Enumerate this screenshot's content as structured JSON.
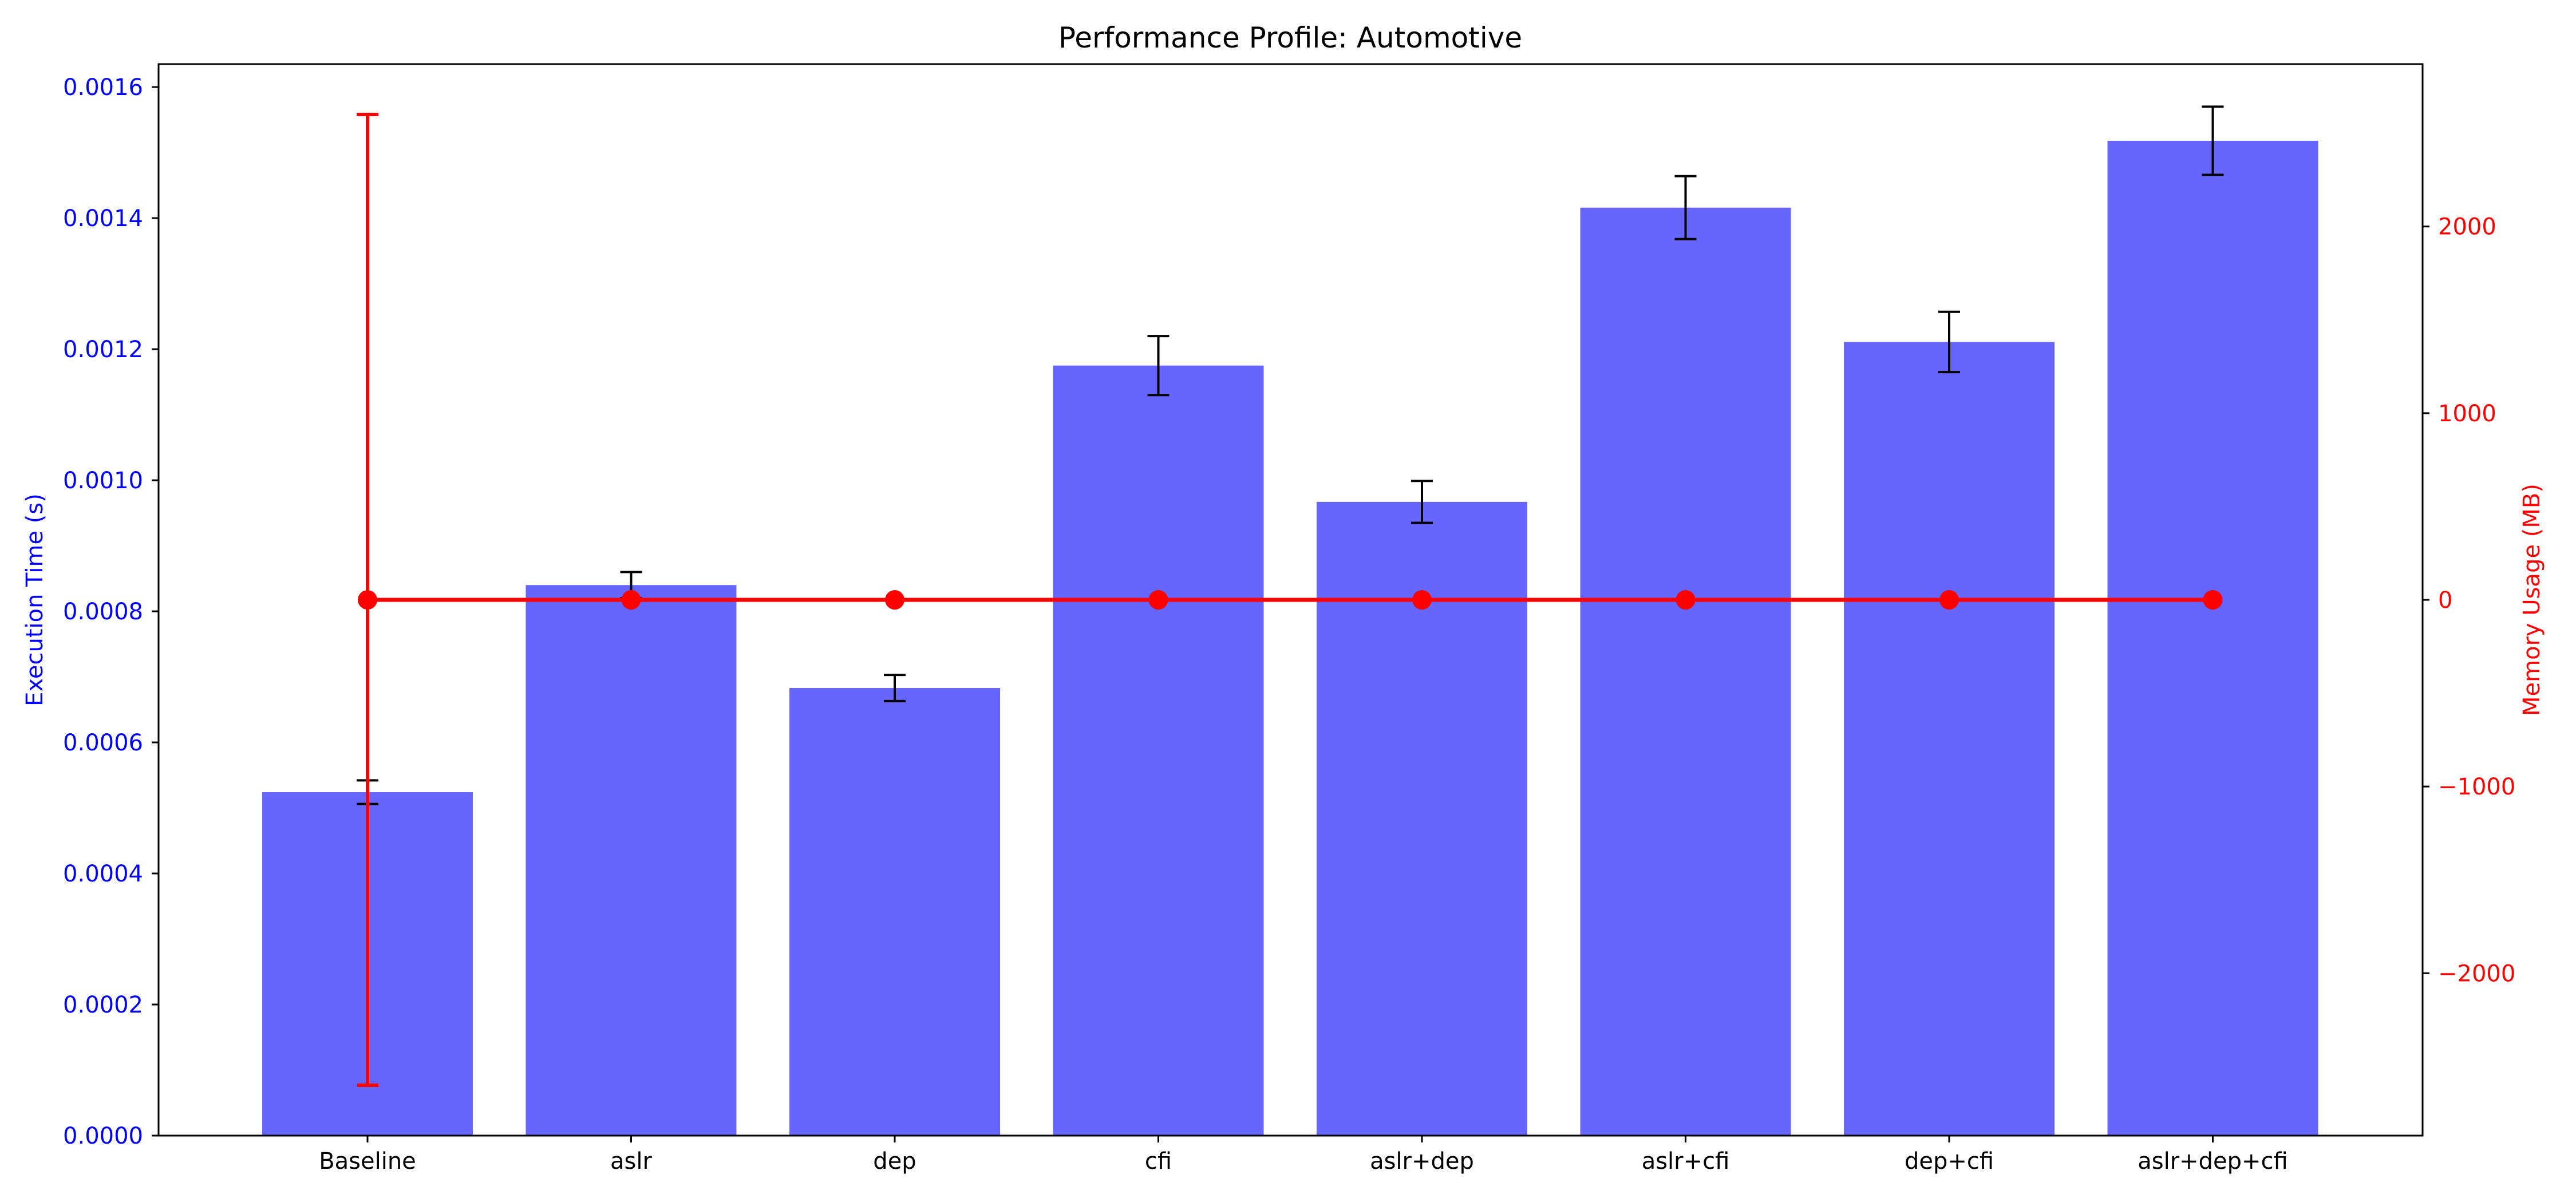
{
  "chart_data": {
    "type": "bar",
    "title": "Performance Profile: Automotive",
    "categories": [
      "Baseline",
      "aslr",
      "dep",
      "cfi",
      "aslr+dep",
      "aslr+cfi",
      "dep+cfi",
      "aslr+dep+cfi"
    ],
    "series": [
      {
        "name": "Execution Time (s)",
        "type": "bar",
        "axis": "left",
        "values": [
          0.000524,
          0.00084,
          0.000683,
          0.001175,
          0.000967,
          0.001416,
          0.001211,
          0.001518
        ],
        "errors": [
          1.8e-05,
          2e-05,
          2e-05,
          4.5e-05,
          3.2e-05,
          4.8e-05,
          4.6e-05,
          5.2e-05
        ]
      },
      {
        "name": "Memory Usage (MB)",
        "type": "line",
        "axis": "right",
        "values": [
          0,
          0,
          0,
          0,
          0,
          0,
          0,
          0
        ],
        "errors": [
          2600,
          0,
          0,
          0,
          0,
          0,
          0,
          0
        ]
      }
    ],
    "ylabel": "Execution Time (s)",
    "ylabel_right": "Memory Usage (MB)",
    "ylim": [
      0,
      0.001635
    ],
    "ylim_right": [
      -2870,
      2870
    ],
    "yticks": [
      "0.0000",
      "0.0002",
      "0.0004",
      "0.0006",
      "0.0008",
      "0.0010",
      "0.0012",
      "0.0014",
      "0.0016"
    ],
    "yticks_right": [
      "−2000",
      "−1000",
      "0",
      "1000",
      "2000"
    ],
    "grid": false,
    "colors": {
      "bar": "#6666ff",
      "line": "#ff0000",
      "left_axis": "#0000ff",
      "right_axis": "#ff0000",
      "bar_error": "#000000"
    }
  }
}
